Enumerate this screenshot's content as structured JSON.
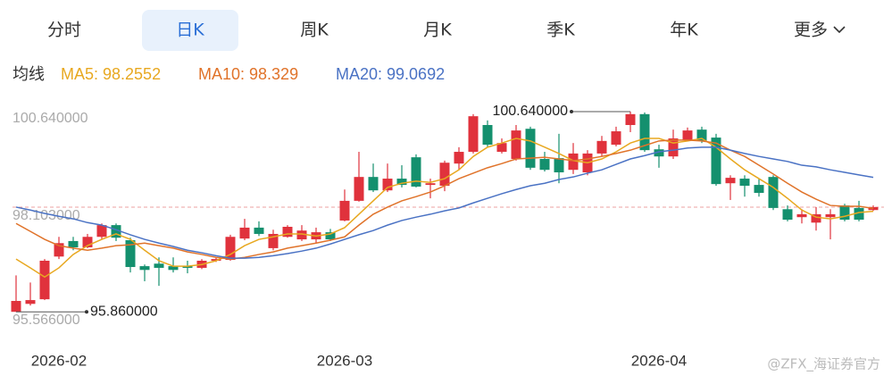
{
  "tabs": {
    "items": [
      "分时",
      "日K",
      "周K",
      "月K",
      "季K",
      "年K",
      "更多"
    ],
    "active": 1
  },
  "watermark": "@ZFX_海证券官方",
  "chart_data": {
    "type": "candlestick",
    "legend_title": "均线",
    "categories": [
      null,
      null,
      null,
      "2026-02",
      null,
      null,
      null,
      null,
      null,
      null,
      null,
      null,
      null,
      null,
      null,
      null,
      null,
      null,
      null,
      null,
      null,
      null,
      null,
      "2026-03",
      null,
      null,
      null,
      null,
      null,
      null,
      null,
      null,
      null,
      null,
      null,
      null,
      null,
      null,
      null,
      null,
      null,
      null,
      null,
      null,
      null,
      "2026-04",
      null,
      null,
      null,
      null,
      null,
      null,
      null,
      null,
      null,
      null,
      null,
      null,
      null,
      null,
      null
    ],
    "open": [
      95.86,
      96.05,
      96.16,
      97.18,
      97.55,
      97.4,
      97.65,
      97.93,
      97.57,
      96.95,
      97.01,
      96.95,
      96.95,
      96.91,
      97.08,
      97.1,
      97.61,
      97.87,
      97.38,
      97.65,
      97.59,
      97.59,
      97.76,
      98.04,
      98.51,
      99.08,
      98.76,
      99.04,
      99.55,
      98.89,
      98.87,
      99.4,
      99.68,
      100.32,
      99.68,
      99.51,
      100.23,
      99.51,
      99.53,
      99.25,
      99.19,
      99.64,
      99.85,
      100.32,
      100.58,
      99.74,
      99.57,
      99.96,
      100.21,
      100.02,
      98.93,
      99.04,
      98.89,
      99.08,
      98.31,
      98.12,
      97.99,
      98.12,
      98.4,
      98.34,
      98.29
    ],
    "close": [
      96.12,
      96.14,
      97.08,
      97.5,
      97.4,
      97.65,
      97.93,
      97.63,
      96.93,
      96.86,
      96.91,
      96.86,
      96.91,
      97.08,
      97.12,
      97.65,
      97.87,
      97.72,
      97.72,
      97.89,
      97.8,
      97.76,
      97.59,
      98.51,
      99.08,
      98.76,
      99.04,
      98.89,
      98.85,
      98.93,
      99.42,
      99.68,
      100.53,
      99.85,
      99.89,
      100.19,
      99.3,
      99.25,
      99.19,
      99.64,
      99.64,
      99.94,
      100.17,
      100.58,
      99.72,
      99.57,
      100.0,
      100.19,
      99.94,
      98.91,
      99.06,
      98.87,
      98.7,
      98.34,
      98.06,
      98.19,
      98.19,
      98.19,
      98.06,
      98.06,
      98.36
    ],
    "high": [
      96.73,
      96.56,
      97.12,
      97.65,
      97.65,
      97.72,
      97.97,
      97.97,
      97.63,
      96.99,
      97.16,
      97.16,
      97.08,
      97.12,
      97.16,
      97.7,
      98.08,
      98.02,
      97.82,
      97.93,
      97.93,
      97.87,
      97.84,
      98.78,
      99.68,
      99.4,
      99.4,
      99.36,
      99.62,
      99.04,
      99.47,
      99.79,
      100.58,
      100.43,
      100.0,
      100.32,
      100.28,
      99.68,
      100.11,
      99.89,
      99.72,
      100.06,
      100.28,
      100.64,
      100.62,
      99.85,
      100.21,
      100.26,
      100.28,
      100.11,
      99.12,
      99.12,
      99.04,
      99.12,
      98.4,
      98.31,
      98.36,
      98.31,
      98.44,
      98.51,
      98.4
    ],
    "low": [
      95.86,
      96.01,
      96.14,
      97.12,
      97.33,
      97.38,
      97.59,
      97.55,
      96.8,
      96.59,
      96.48,
      96.8,
      96.78,
      96.88,
      97.05,
      97.08,
      97.57,
      97.67,
      97.33,
      97.63,
      97.55,
      97.5,
      97.55,
      98.02,
      98.49,
      98.72,
      98.72,
      98.83,
      98.83,
      98.57,
      98.74,
      99.25,
      99.64,
      99.79,
      99.64,
      99.47,
      99.25,
      99.21,
      98.93,
      99.15,
      99.12,
      99.57,
      99.81,
      100.15,
      99.68,
      99.3,
      99.51,
      99.94,
      99.89,
      98.87,
      98.53,
      98.61,
      98.61,
      98.29,
      98.02,
      97.97,
      97.8,
      97.59,
      98.02,
      98.02,
      98.27
    ],
    "up_color": "#e0323c",
    "down_color": "#14906e",
    "series": [
      {
        "name": "MA5: 98.2552",
        "color": "#e8a820",
        "values": [
          97.12,
          96.91,
          96.69,
          96.91,
          97.23,
          97.44,
          97.59,
          97.72,
          97.59,
          97.33,
          97.08,
          96.95,
          96.95,
          96.99,
          97.08,
          97.23,
          97.44,
          97.59,
          97.65,
          97.72,
          97.72,
          97.67,
          97.72,
          97.87,
          98.19,
          98.51,
          98.83,
          98.93,
          98.98,
          98.95,
          99.04,
          99.25,
          99.57,
          99.79,
          99.89,
          100.0,
          99.94,
          99.79,
          99.64,
          99.47,
          99.42,
          99.51,
          99.68,
          99.89,
          100.0,
          100.0,
          99.89,
          99.94,
          100.0,
          99.79,
          99.51,
          99.25,
          99.04,
          98.83,
          98.57,
          98.29,
          98.12,
          98.08,
          98.14,
          98.23,
          98.26
        ]
      },
      {
        "name": "MA10: 98.329",
        "color": "#e0732a",
        "values": [
          97.97,
          97.78,
          97.59,
          97.44,
          97.38,
          97.33,
          97.38,
          97.44,
          97.46,
          97.5,
          97.44,
          97.38,
          97.29,
          97.23,
          97.16,
          97.12,
          97.16,
          97.23,
          97.29,
          97.38,
          97.44,
          97.5,
          97.57,
          97.65,
          97.93,
          98.19,
          98.36,
          98.51,
          98.61,
          98.72,
          98.87,
          99.04,
          99.17,
          99.3,
          99.4,
          99.51,
          99.53,
          99.55,
          99.51,
          99.47,
          99.51,
          99.57,
          99.64,
          99.72,
          99.83,
          99.94,
          99.96,
          99.96,
          99.94,
          99.89,
          99.72,
          99.57,
          99.36,
          99.15,
          98.93,
          98.72,
          98.55,
          98.4,
          98.38,
          98.38,
          98.33
        ]
      },
      {
        "name": "MA20: 99.0692",
        "color": "#4a72c4",
        "values": [
          98.36,
          98.29,
          98.21,
          98.14,
          98.08,
          97.99,
          97.93,
          97.82,
          97.7,
          97.59,
          97.5,
          97.42,
          97.33,
          97.27,
          97.2,
          97.14,
          97.14,
          97.16,
          97.2,
          97.25,
          97.31,
          97.38,
          97.48,
          97.59,
          97.7,
          97.8,
          97.93,
          98.04,
          98.12,
          98.19,
          98.27,
          98.34,
          98.46,
          98.57,
          98.68,
          98.78,
          98.87,
          98.93,
          99.02,
          99.08,
          99.17,
          99.25,
          99.38,
          99.51,
          99.59,
          99.68,
          99.72,
          99.77,
          99.79,
          99.79,
          99.72,
          99.64,
          99.57,
          99.51,
          99.45,
          99.36,
          99.32,
          99.25,
          99.19,
          99.13,
          99.07
        ]
      }
    ],
    "ylim": [
      95.566,
      100.64
    ],
    "yticks": [
      {
        "value": 100.64,
        "label": "100.640000"
      },
      {
        "value": 98.103,
        "label": "98.103000"
      },
      {
        "value": 95.566,
        "label": "95.566000"
      }
    ],
    "annotations": [
      {
        "value": 100.64,
        "label": "100.640000",
        "field": "high"
      },
      {
        "value": 95.86,
        "label": "95.860000",
        "field": "low"
      }
    ],
    "last_price_line": true,
    "grid": false
  }
}
